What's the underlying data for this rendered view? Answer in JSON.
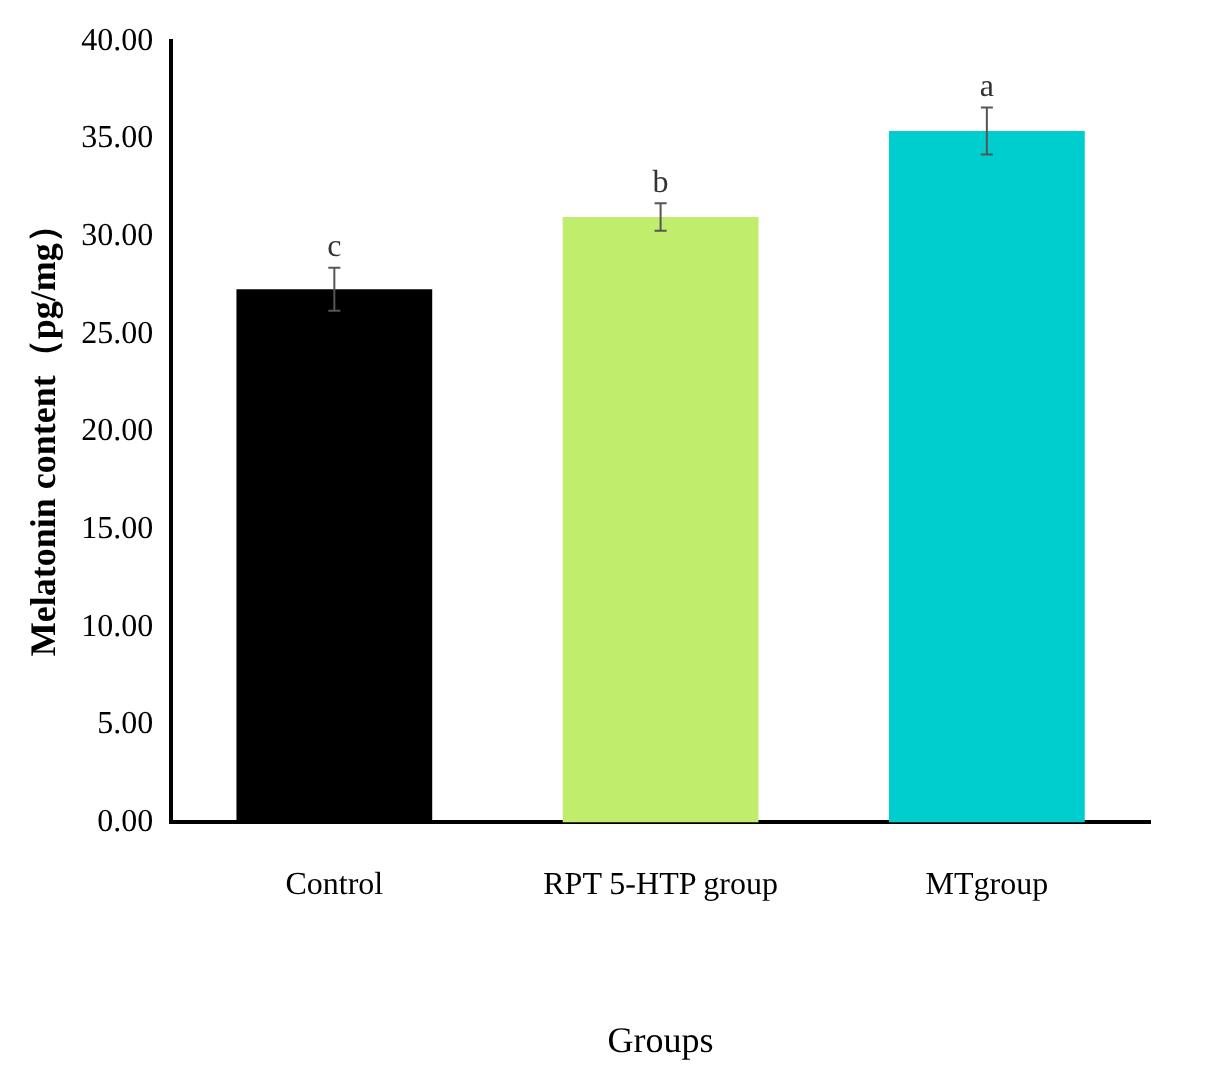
{
  "chart_data": {
    "type": "bar",
    "xlabel": "Groups",
    "ylabel": "Melatonin content（pg/mg）",
    "categories": [
      "Control",
      "RPT 5-HTP group",
      "MTgroup"
    ],
    "values": [
      27.3,
      31.0,
      35.4
    ],
    "colors": [
      "#000000",
      "#c0ed6c",
      "#00cdcd"
    ],
    "errors": [
      1.1,
      0.7,
      1.2
    ],
    "ylim": [
      0,
      40
    ],
    "yticks": [
      {
        "value": 0,
        "label": "0.00"
      },
      {
        "value": 5,
        "label": "5.00"
      },
      {
        "value": 10,
        "label": "10.00"
      },
      {
        "value": 15,
        "label": "15.00"
      },
      {
        "value": 20,
        "label": "20.00"
      },
      {
        "value": 25,
        "label": "25.00"
      },
      {
        "value": 30,
        "label": "30.00"
      },
      {
        "value": 35,
        "label": "35.00"
      },
      {
        "value": 40,
        "label": "40.00"
      }
    ],
    "annotations": [
      {
        "text": "c",
        "x": "Control",
        "y": 28.4
      },
      {
        "text": "b",
        "x": "RPT 5-HTP group",
        "y": 31.7
      },
      {
        "text": "a",
        "x": "MTgroup",
        "y": 36.6
      }
    ],
    "grid": false,
    "legend": false
  }
}
